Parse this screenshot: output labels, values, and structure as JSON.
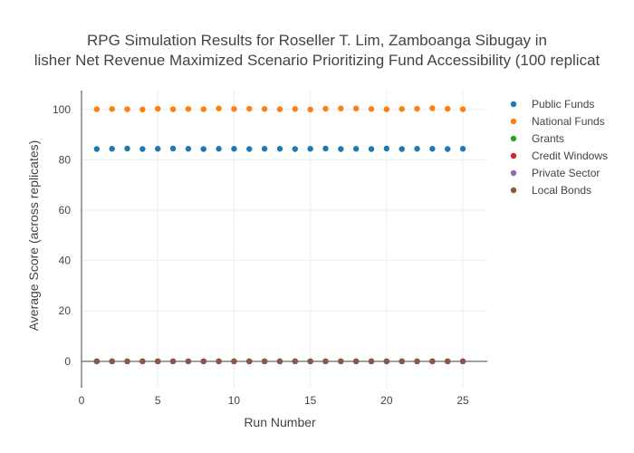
{
  "chart_data": {
    "type": "scatter",
    "title_lines": [
      "RPG Simulation Results for Roseller T. Lim, Zamboanga Sibugay in",
      "lisher Net Revenue Maximized Scenario Prioritizing Fund Accessibility (100 replicat"
    ],
    "xlabel": "Run Number",
    "ylabel": "Average Score (across replicates)",
    "xlim": [
      0,
      26.6
    ],
    "ylim": [
      -10.5,
      107.5
    ],
    "xticks": [
      0,
      5,
      10,
      15,
      20,
      25
    ],
    "yticks": [
      0,
      20,
      40,
      60,
      80,
      100
    ],
    "grid": true,
    "legend_position": "top-right",
    "x": [
      1,
      2,
      3,
      4,
      5,
      6,
      7,
      8,
      9,
      10,
      11,
      12,
      13,
      14,
      15,
      16,
      17,
      18,
      19,
      20,
      21,
      22,
      23,
      24,
      25
    ],
    "series": [
      {
        "name": "Public Funds",
        "color": "#1f77b4",
        "values": [
          84.3,
          84.4,
          84.5,
          84.3,
          84.4,
          84.5,
          84.4,
          84.3,
          84.4,
          84.4,
          84.3,
          84.4,
          84.4,
          84.3,
          84.4,
          84.5,
          84.3,
          84.4,
          84.3,
          84.5,
          84.3,
          84.4,
          84.4,
          84.3,
          84.4
        ]
      },
      {
        "name": "National Funds",
        "color": "#ff7f0e",
        "values": [
          100.1,
          100.2,
          100.1,
          100.0,
          100.3,
          100.1,
          100.2,
          100.1,
          100.4,
          100.2,
          100.3,
          100.2,
          100.1,
          100.2,
          100.0,
          100.3,
          100.4,
          100.4,
          100.2,
          100.1,
          100.2,
          100.3,
          100.5,
          100.3,
          100.1
        ]
      },
      {
        "name": "Grants",
        "color": "#2ca02c",
        "values": [
          0,
          0,
          0,
          0,
          0,
          0,
          0,
          0,
          0,
          0,
          0,
          0,
          0,
          0,
          0,
          0,
          0,
          0,
          0,
          0,
          0,
          0,
          0,
          0,
          0
        ]
      },
      {
        "name": "Credit Windows",
        "color": "#d62728",
        "values": [
          0,
          0,
          0,
          0,
          0,
          0,
          0,
          0,
          0,
          0,
          0,
          0,
          0,
          0,
          0,
          0,
          0,
          0,
          0,
          0,
          0,
          0,
          0,
          0,
          0
        ]
      },
      {
        "name": "Private Sector",
        "color": "#9467bd",
        "values": [
          0,
          0,
          0,
          0,
          0,
          0,
          0,
          0,
          0,
          0,
          0,
          0,
          0,
          0,
          0,
          0,
          0,
          0,
          0,
          0,
          0,
          0,
          0,
          0,
          0
        ]
      },
      {
        "name": "Local Bonds",
        "color": "#8c564b",
        "values": [
          0,
          0,
          0,
          0,
          0,
          0,
          0,
          0,
          0,
          0,
          0,
          0,
          0,
          0,
          0,
          0,
          0,
          0,
          0,
          0,
          0,
          0,
          0,
          0,
          0
        ]
      }
    ]
  }
}
